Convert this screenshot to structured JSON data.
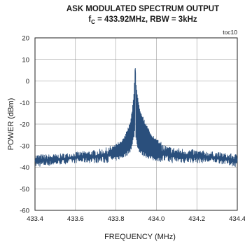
{
  "chart_data": {
    "type": "line",
    "title": "ASK MODULATED SPECTRUM OUTPUT",
    "subtitle": {
      "prefix": "f",
      "subscript": "C",
      "rest": " = 433.92MHz, RBW = 3kHz"
    },
    "tag": "toc10",
    "xlabel": "FREQUENCY (MHz)",
    "ylabel": "POWER (dBm)",
    "xlim": [
      433.4,
      434.4
    ],
    "ylim": [
      -60,
      20
    ],
    "x_ticks": [
      433.4,
      433.6,
      433.8,
      434.0,
      434.2,
      434.4
    ],
    "x_tick_labels": [
      "433.4",
      "433.6",
      "433.8",
      "434.0",
      "434.2",
      "434.4"
    ],
    "y_ticks": [
      20,
      10,
      0,
      -10,
      -20,
      -30,
      -40,
      -50,
      -60
    ],
    "y_tick_labels": [
      "20",
      "10",
      "0",
      "-10",
      "-20",
      "-30",
      "-40",
      "-50",
      "-60"
    ],
    "grid": true,
    "line_color": "#2a4f7c",
    "series": [
      {
        "envelope": {
          "x": [
            433.4,
            433.5,
            433.6,
            433.7,
            433.75,
            433.8,
            433.83,
            433.85,
            433.87,
            433.88,
            433.89,
            433.895,
            433.9,
            433.91,
            433.92,
            433.94,
            433.96,
            433.98,
            434.0,
            434.05,
            434.1,
            434.2,
            434.3,
            434.4
          ],
          "upper": [
            -34,
            -34,
            -33,
            -32,
            -31,
            -29,
            -27,
            -24,
            -19,
            -13,
            -4,
            7,
            -1,
            -8,
            -13,
            -18,
            -22,
            -25,
            -27,
            -30,
            -31,
            -32,
            -33,
            -34
          ],
          "lower": [
            -40,
            -39,
            -38,
            -38,
            -38,
            -37,
            -36,
            -35,
            -33,
            -31,
            -26,
            -23,
            -28,
            -32,
            -34,
            -35,
            -36,
            -37,
            -37,
            -38,
            -38,
            -38,
            -38,
            -40
          ]
        }
      }
    ]
  }
}
